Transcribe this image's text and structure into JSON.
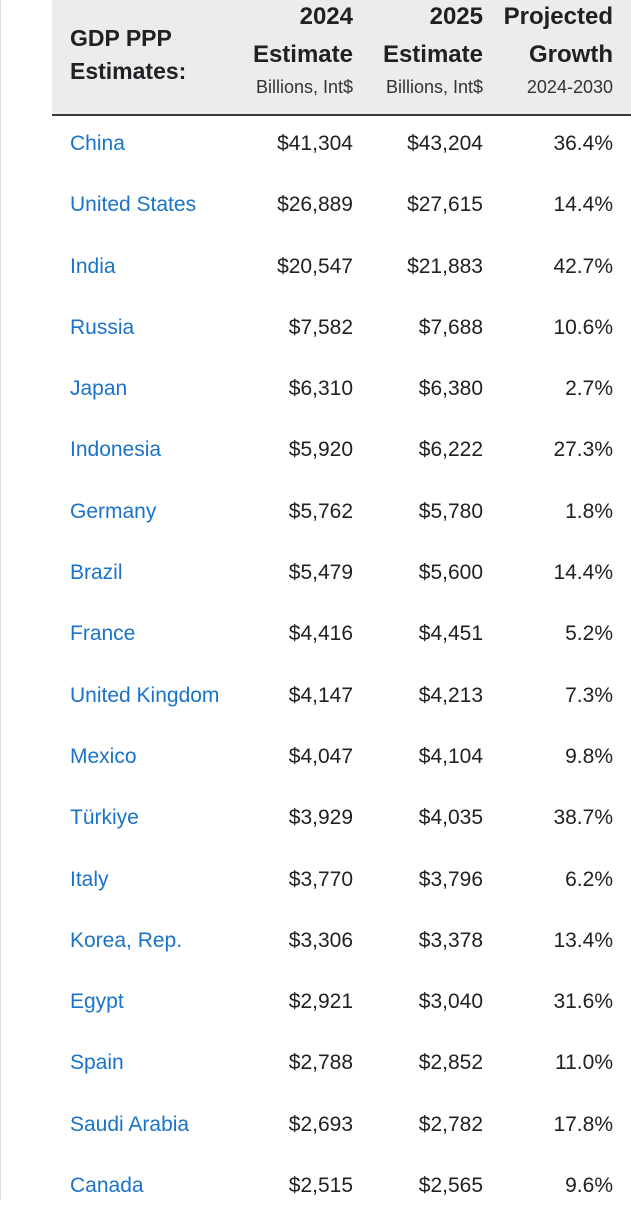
{
  "header": {
    "title": "GDP PPP Estimates:",
    "col_2024": {
      "line1": "2024",
      "line2": "Estimate",
      "sub": "Billions, Int$"
    },
    "col_2025": {
      "line1": "2025",
      "line2": "Estimate",
      "sub": "Billions, Int$"
    },
    "col_growth": {
      "line1": "Projected",
      "line2": "Growth",
      "sub": "2024-2030"
    }
  },
  "colors": {
    "link": "#1a73c8",
    "header_bg": "#ececec",
    "header_rule": "#3a3a3a"
  },
  "rows": [
    {
      "country": "China",
      "v2024": "$41,304",
      "v2025": "$43,204",
      "growth": "36.4%"
    },
    {
      "country": "United States",
      "v2024": "$26,889",
      "v2025": "$27,615",
      "growth": "14.4%"
    },
    {
      "country": "India",
      "v2024": "$20,547",
      "v2025": "$21,883",
      "growth": "42.7%"
    },
    {
      "country": "Russia",
      "v2024": "$7,582",
      "v2025": "$7,688",
      "growth": "10.6%"
    },
    {
      "country": "Japan",
      "v2024": "$6,310",
      "v2025": "$6,380",
      "growth": "2.7%"
    },
    {
      "country": "Indonesia",
      "v2024": "$5,920",
      "v2025": "$6,222",
      "growth": "27.3%"
    },
    {
      "country": "Germany",
      "v2024": "$5,762",
      "v2025": "$5,780",
      "growth": "1.8%"
    },
    {
      "country": "Brazil",
      "v2024": "$5,479",
      "v2025": "$5,600",
      "growth": "14.4%"
    },
    {
      "country": "France",
      "v2024": "$4,416",
      "v2025": "$4,451",
      "growth": "5.2%"
    },
    {
      "country": "United Kingdom",
      "v2024": "$4,147",
      "v2025": "$4,213",
      "growth": "7.3%"
    },
    {
      "country": "Mexico",
      "v2024": "$4,047",
      "v2025": "$4,104",
      "growth": "9.8%"
    },
    {
      "country": "Türkiye",
      "v2024": "$3,929",
      "v2025": "$4,035",
      "growth": "38.7%"
    },
    {
      "country": "Italy",
      "v2024": "$3,770",
      "v2025": "$3,796",
      "growth": "6.2%"
    },
    {
      "country": "Korea, Rep.",
      "v2024": "$3,306",
      "v2025": "$3,378",
      "growth": "13.4%"
    },
    {
      "country": "Egypt",
      "v2024": "$2,921",
      "v2025": "$3,040",
      "growth": "31.6%"
    },
    {
      "country": "Spain",
      "v2024": "$2,788",
      "v2025": "$2,852",
      "growth": "11.0%"
    },
    {
      "country": "Saudi Arabia",
      "v2024": "$2,693",
      "v2025": "$2,782",
      "growth": "17.8%"
    },
    {
      "country": "Canada",
      "v2024": "$2,515",
      "v2025": "$2,565",
      "growth": "9.6%"
    }
  ]
}
